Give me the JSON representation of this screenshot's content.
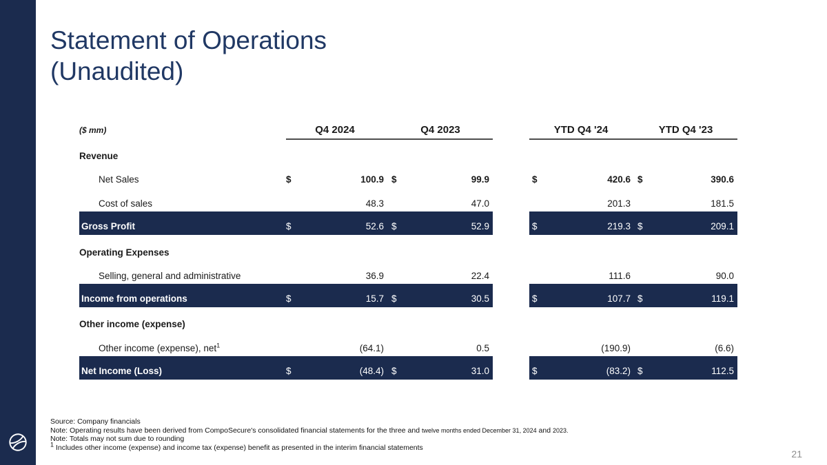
{
  "slide": {
    "title": "Statement of Operations\n(Unaudited)",
    "page_number": "21"
  },
  "colors": {
    "navy_band": "#1b2b4e",
    "title_navy": "#203864",
    "rule_gray": "#4d4d4d",
    "page_number_gray": "#8c8c8c"
  },
  "icons": {
    "logo": "composecure-swirl-logo"
  },
  "table": {
    "unit_label": "($ mm)",
    "column_headers": [
      "Q4 2024",
      "Q4 2023",
      "YTD Q4 '24",
      "YTD Q4 '23"
    ],
    "rows": [
      {
        "type": "section",
        "label": "Revenue"
      },
      {
        "type": "item",
        "label": "Net Sales",
        "dollar": true,
        "value_bold": true,
        "values": [
          "100.9",
          "99.9",
          "420.6",
          "390.6"
        ]
      },
      {
        "type": "item",
        "label": "Cost of sales",
        "dollar": false,
        "values": [
          "48.3",
          "47.0",
          "201.3",
          "181.5"
        ]
      },
      {
        "type": "subtotal",
        "label": "Gross Profit",
        "dollar": true,
        "values": [
          "52.6",
          "52.9",
          "219.3",
          "209.1"
        ]
      },
      {
        "type": "section",
        "label": "Operating Expenses"
      },
      {
        "type": "item",
        "label": "Selling, general and administrative",
        "dollar": false,
        "values": [
          "36.9",
          "22.4",
          "111.6",
          "90.0"
        ]
      },
      {
        "type": "subtotal",
        "label": "Income from operations",
        "dollar": true,
        "values": [
          "15.7",
          "30.5",
          "107.7",
          "119.1"
        ]
      },
      {
        "type": "section",
        "label": "Other income (expense)"
      },
      {
        "type": "item",
        "label": "Other income (expense), net",
        "sup": "1",
        "dollar": false,
        "values": [
          "(64.1)",
          "0.5",
          "(190.9)",
          "(6.6)"
        ]
      },
      {
        "type": "subtotal",
        "label": "Net Income (Loss)",
        "dollar": true,
        "values": [
          "(48.4)",
          "31.0",
          "(83.2)",
          "112.5"
        ]
      }
    ]
  },
  "footnotes": {
    "line1": "Source: Company financials",
    "line2_parts": [
      {
        "text": "Note: Operating results have been derived from CompoSecure's consolidated financial statements for the three and ",
        "small": false
      },
      {
        "text": "twelve months ended December 31, 2024",
        "small": true
      },
      {
        "text": " and ",
        "small": false
      },
      {
        "text": "2023.",
        "small": true
      }
    ],
    "line3": "Note: Totals may not sum due to rounding",
    "line4_sup": "1",
    "line4": " Includes other income (expense) and income tax (expense) benefit as presented in the interim financial statements"
  }
}
